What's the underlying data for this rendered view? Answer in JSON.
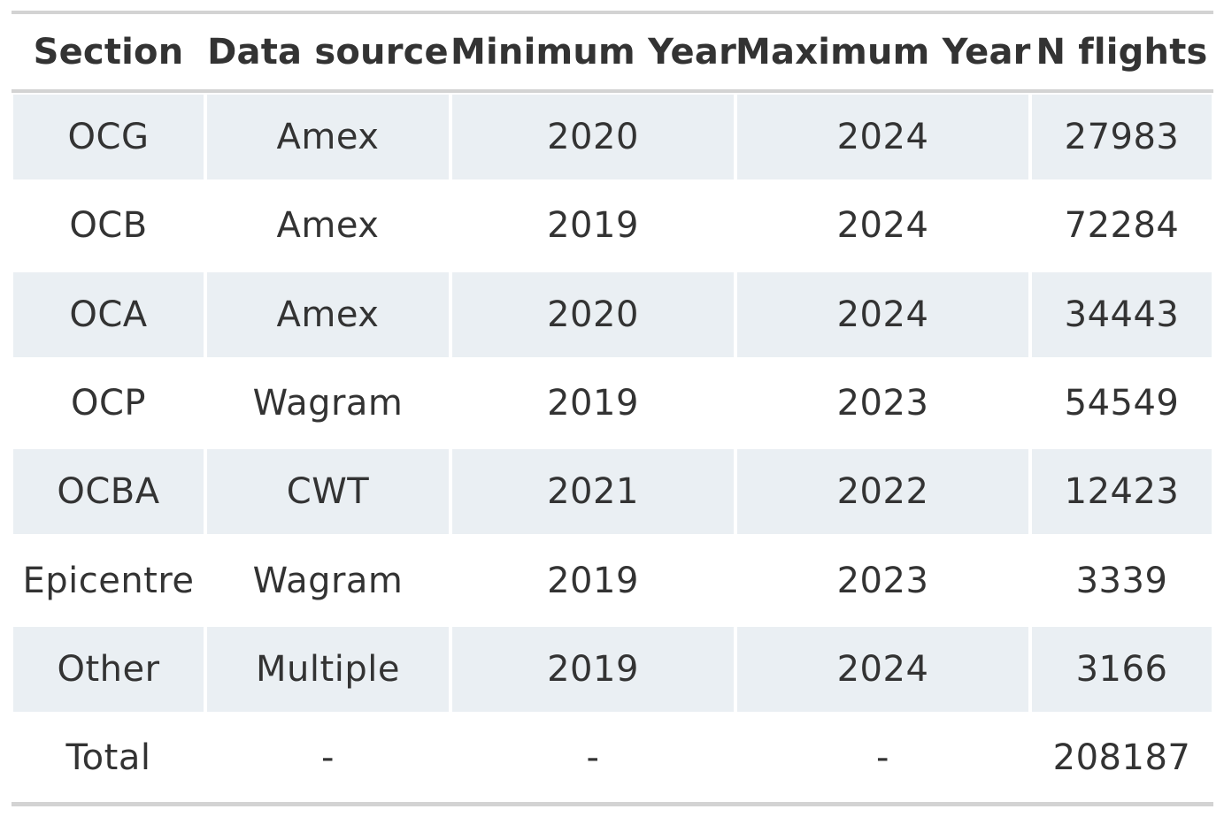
{
  "table": {
    "headers": [
      "Section",
      "Data source",
      "Minimum Year",
      "Maximum Year",
      "N flights"
    ],
    "rows": [
      [
        "OCG",
        "Amex",
        "2020",
        "2024",
        "27983"
      ],
      [
        "OCB",
        "Amex",
        "2019",
        "2024",
        "72284"
      ],
      [
        "OCA",
        "Amex",
        "2020",
        "2024",
        "34443"
      ],
      [
        "OCP",
        "Wagram",
        "2019",
        "2023",
        "54549"
      ],
      [
        "OCBA",
        "CWT",
        "2021",
        "2022",
        "12423"
      ],
      [
        "Epicentre",
        "Wagram",
        "2019",
        "2023",
        "3339"
      ],
      [
        "Other",
        "Multiple",
        "2019",
        "2024",
        "3166"
      ],
      [
        "Total",
        "-",
        "-",
        "-",
        "208187"
      ]
    ]
  },
  "colors": {
    "stripe": "#eaeff3",
    "rule": "#d3d3d3",
    "text": "#333333"
  }
}
